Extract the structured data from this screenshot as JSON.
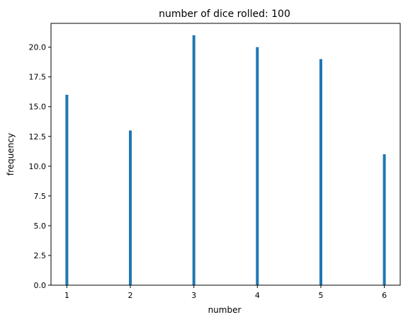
{
  "chart_data": {
    "type": "bar",
    "title": "number of dice rolled: 100",
    "xlabel": "number",
    "ylabel": "frequency",
    "x": [
      1,
      2,
      3,
      4,
      5,
      6
    ],
    "values": [
      16,
      13,
      21,
      20,
      19,
      11
    ],
    "xlim": [
      0.75,
      6.25
    ],
    "ylim": [
      0,
      22
    ],
    "xticks": [
      "1",
      "2",
      "3",
      "4",
      "5",
      "6"
    ],
    "yticks": [
      "0.0",
      "2.5",
      "5.0",
      "7.5",
      "10.0",
      "12.5",
      "15.0",
      "17.5",
      "20.0"
    ],
    "grid": false,
    "bar_color": "#1f77b4"
  }
}
